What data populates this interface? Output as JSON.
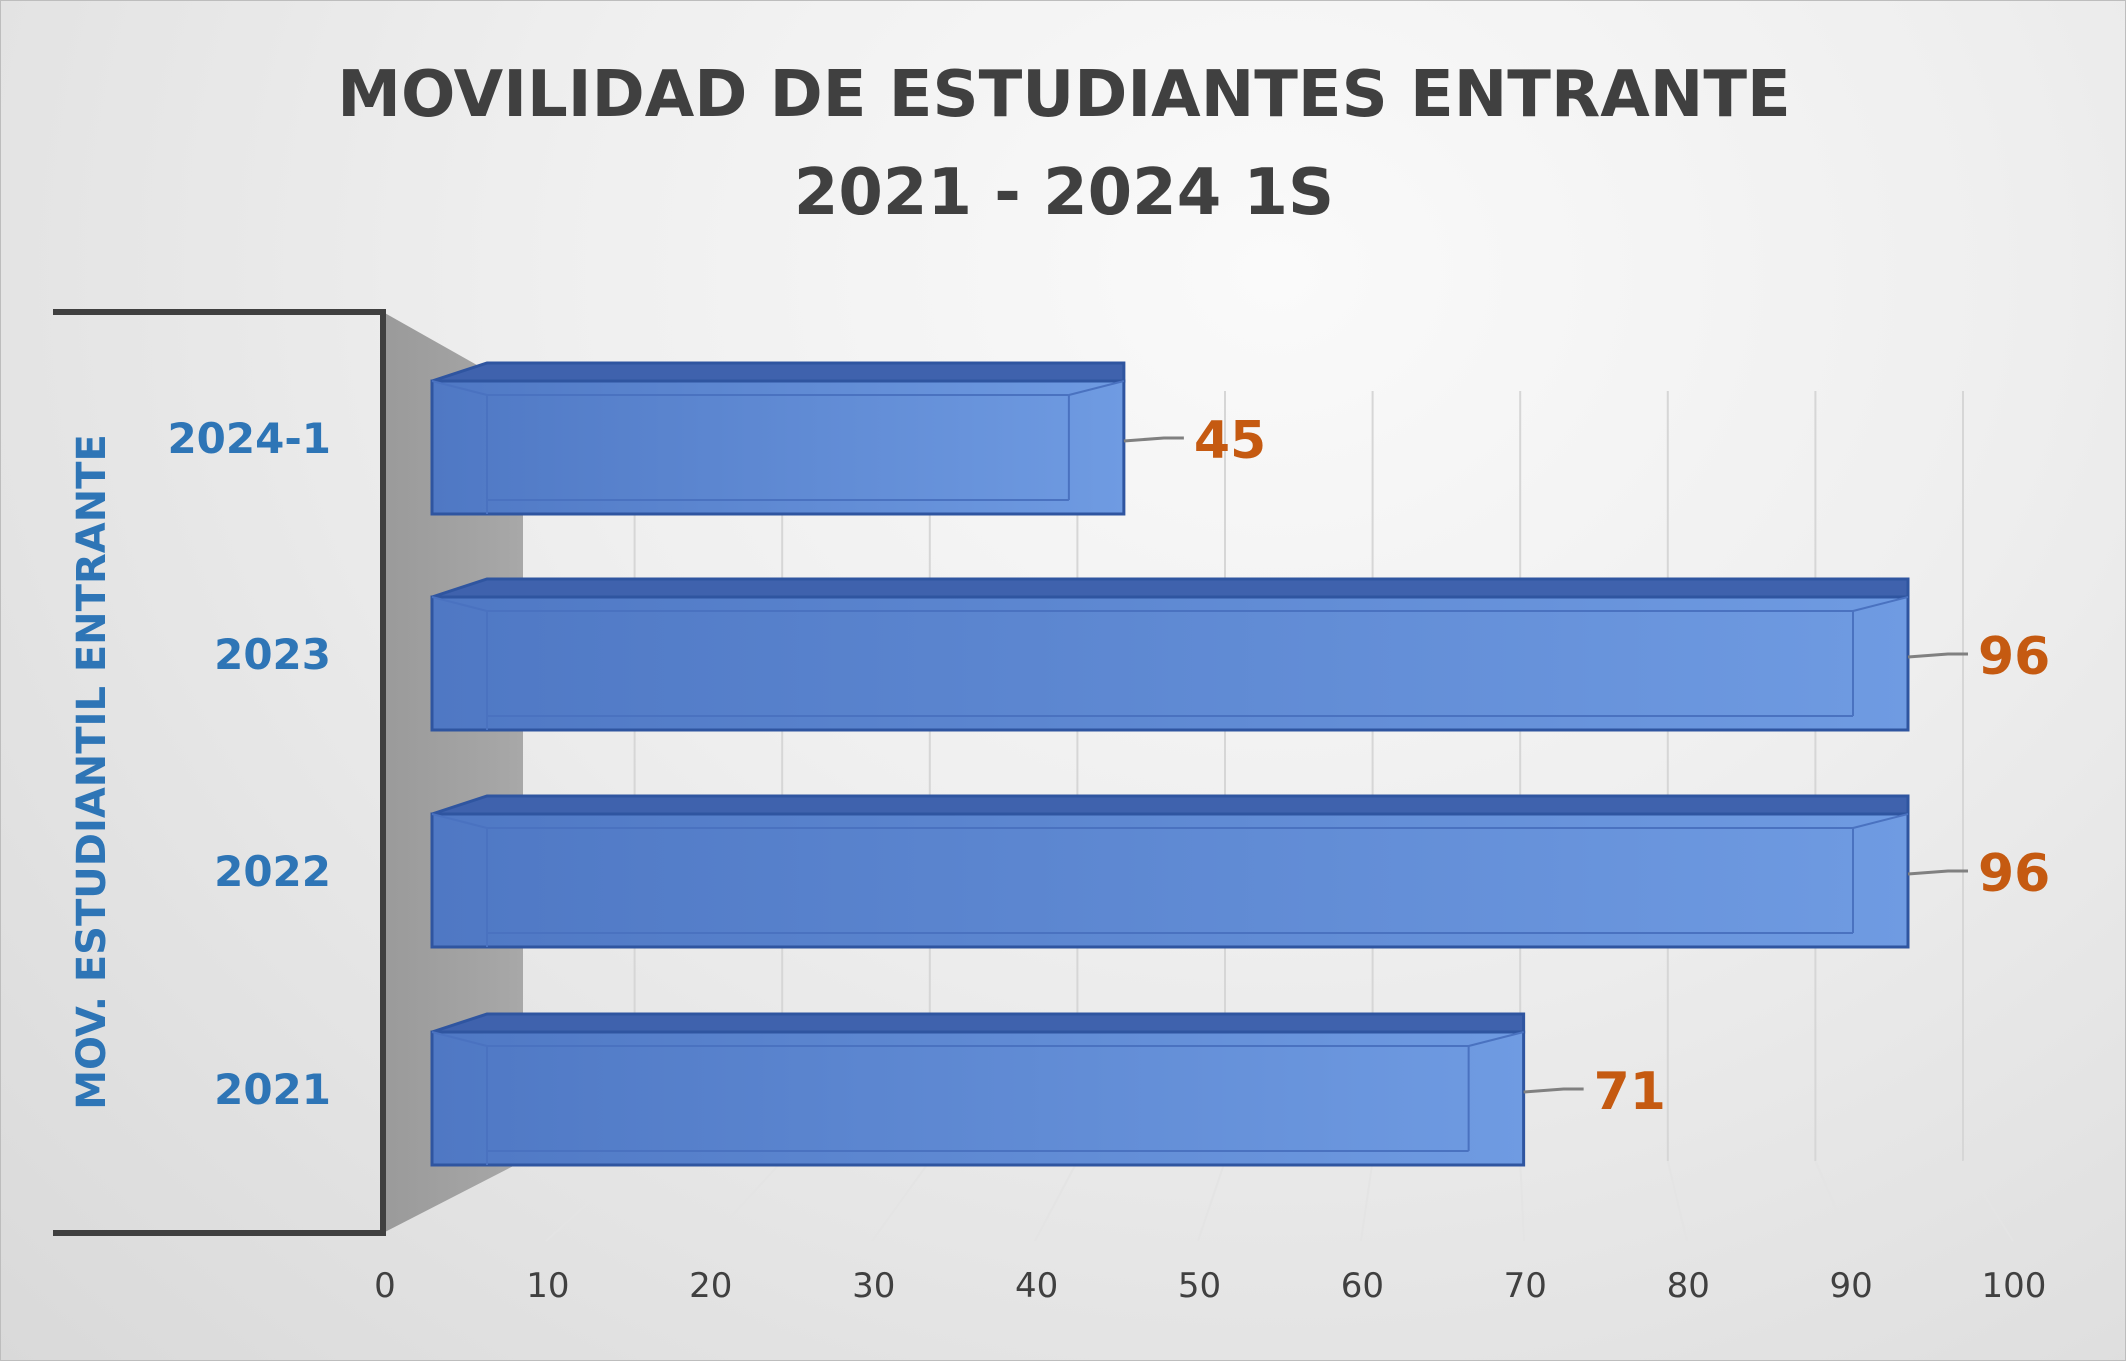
{
  "chart_data": {
    "type": "bar",
    "orientation": "horizontal",
    "style": "3d",
    "title": "MOVILIDAD DE ESTUDIANTES ENTRANTE",
    "subtitle": "2021 - 2024 1S",
    "ylabel": "MOV. ESTUDIANTIL ENTRANTE",
    "xlabel": "",
    "categories": [
      "2024-1",
      "2023",
      "2022",
      "2021"
    ],
    "values": [
      45,
      96,
      96,
      71
    ],
    "xlim": [
      0,
      100
    ],
    "xticks": [
      "0",
      "10",
      "20",
      "30",
      "40",
      "50",
      "60",
      "70",
      "80",
      "90",
      "100"
    ],
    "grid": true,
    "legend": "none",
    "colors": {
      "bar": "#5b86cf",
      "bar_edge": "#2f55a0",
      "category_label": "#2e75b6",
      "data_label": "#c55a11",
      "title": "#404040"
    }
  }
}
